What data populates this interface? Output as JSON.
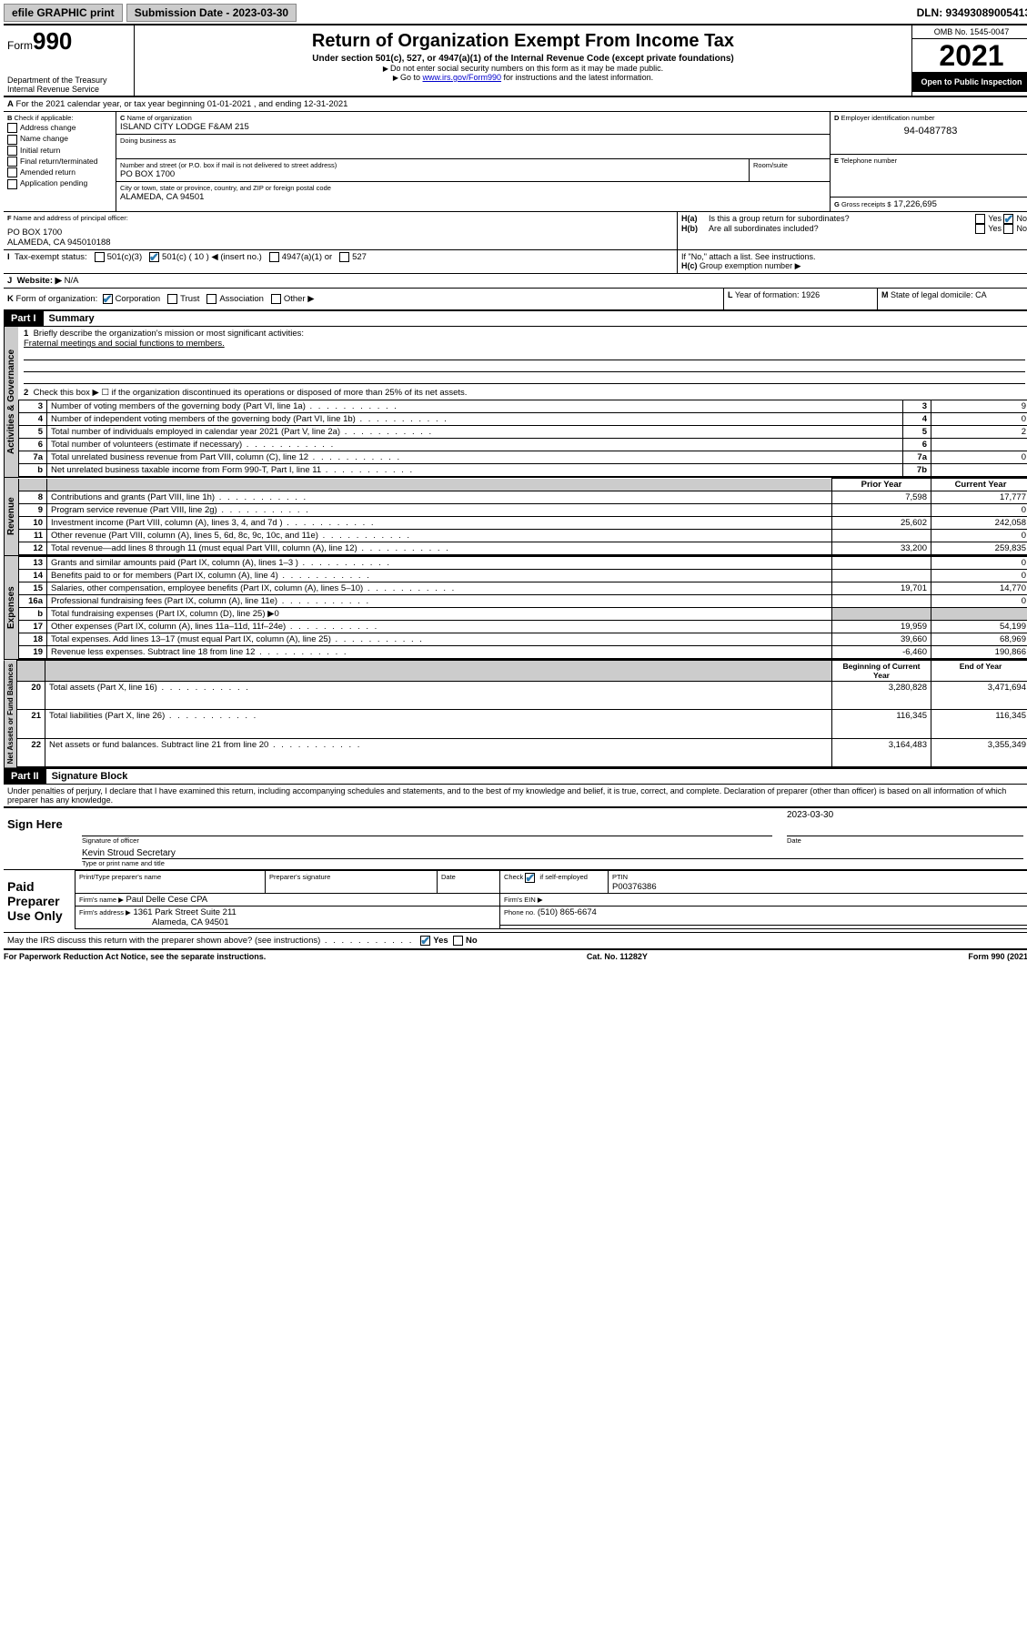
{
  "topbar": {
    "efile": "efile GRAPHIC print",
    "sub_label": "Submission Date - 2023-03-30",
    "dln": "DLN: 93493089005413"
  },
  "header": {
    "form_label": "Form",
    "form_no": "990",
    "dept": "Department of the Treasury Internal Revenue Service",
    "title": "Return of Organization Exempt From Income Tax",
    "sub": "Under section 501(c), 527, or 4947(a)(1) of the Internal Revenue Code (except private foundations)",
    "note1": "Do not enter social security numbers on this form as it may be made public.",
    "note2_a": "Go to ",
    "note2_link": "www.irs.gov/Form990",
    "note2_b": " for instructions and the latest information.",
    "omb": "OMB No. 1545-0047",
    "year": "2021",
    "inspect": "Open to Public Inspection"
  },
  "periodA": "For the 2021 calendar year, or tax year beginning 01-01-2021   , and ending 12-31-2021",
  "B": {
    "title": "Check if applicable:",
    "items": [
      "Address change",
      "Name change",
      "Initial return",
      "Final return/terminated",
      "Amended return",
      "Application pending"
    ]
  },
  "C": {
    "lbl_name": "Name of organization",
    "name": "ISLAND CITY LODGE F&AM 215",
    "lbl_dba": "Doing business as",
    "lbl_addr": "Number and street (or P.O. box if mail is not delivered to street address)",
    "lbl_room": "Room/suite",
    "addr": "PO BOX 1700",
    "lbl_city": "City or town, state or province, country, and ZIP or foreign postal code",
    "city": "ALAMEDA, CA  94501"
  },
  "D": {
    "lbl": "Employer identification number",
    "val": "94-0487783"
  },
  "E": {
    "lbl": "Telephone number"
  },
  "G": {
    "lbl": "Gross receipts $",
    "val": "17,226,695"
  },
  "F": {
    "lbl": "Name and address of principal officer:",
    "l1": "PO BOX 1700",
    "l2": "ALAMEDA, CA  945010188"
  },
  "H": {
    "a": "Is this a group return for subordinates?",
    "b": "Are all subordinates included?",
    "yes": "Yes",
    "no": "No",
    "note": "If \"No,\" attach a list. See instructions.",
    "c": "Group exemption number ▶"
  },
  "I": {
    "lbl": "Tax-exempt status:",
    "o1": "501(c)(3)",
    "o2": "501(c) ( 10 ) ◀ (insert no.)",
    "o3": "4947(a)(1) or",
    "o4": "527"
  },
  "J": {
    "lbl": "Website: ▶",
    "val": "N/A"
  },
  "K": {
    "lbl": "Form of organization:",
    "o1": "Corporation",
    "o2": "Trust",
    "o3": "Association",
    "o4": "Other ▶"
  },
  "L": {
    "lbl": "Year of formation:",
    "val": "1926"
  },
  "M": {
    "lbl": "State of legal domicile:",
    "val": "CA"
  },
  "part1": {
    "hdr": "Part I",
    "title": "Summary",
    "q1": "Briefly describe the organization's mission or most significant activities:",
    "q1v": "Fraternal meetings and social functions to members.",
    "q2": "Check this box ▶ ☐  if the organization discontinued its operations or disposed of more than 25% of its net assets.",
    "rows_gov": [
      {
        "n": "3",
        "t": "Number of voting members of the governing body (Part VI, line 1a)",
        "r": "3",
        "v": "9"
      },
      {
        "n": "4",
        "t": "Number of independent voting members of the governing body (Part VI, line 1b)",
        "r": "4",
        "v": "0"
      },
      {
        "n": "5",
        "t": "Total number of individuals employed in calendar year 2021 (Part V, line 2a)",
        "r": "5",
        "v": "2"
      },
      {
        "n": "6",
        "t": "Total number of volunteers (estimate if necessary)",
        "r": "6",
        "v": ""
      },
      {
        "n": "7a",
        "t": "Total unrelated business revenue from Part VIII, column (C), line 12",
        "r": "7a",
        "v": "0"
      },
      {
        "n": "b",
        "t": "Net unrelated business taxable income from Form 990-T, Part I, line 11",
        "r": "7b",
        "v": ""
      }
    ],
    "col_prior": "Prior Year",
    "col_curr": "Current Year",
    "rows_rev": [
      {
        "n": "8",
        "t": "Contributions and grants (Part VIII, line 1h)",
        "p": "7,598",
        "c": "17,777"
      },
      {
        "n": "9",
        "t": "Program service revenue (Part VIII, line 2g)",
        "p": "",
        "c": "0"
      },
      {
        "n": "10",
        "t": "Investment income (Part VIII, column (A), lines 3, 4, and 7d )",
        "p": "25,602",
        "c": "242,058"
      },
      {
        "n": "11",
        "t": "Other revenue (Part VIII, column (A), lines 5, 6d, 8c, 9c, 10c, and 11e)",
        "p": "",
        "c": "0"
      },
      {
        "n": "12",
        "t": "Total revenue—add lines 8 through 11 (must equal Part VIII, column (A), line 12)",
        "p": "33,200",
        "c": "259,835"
      }
    ],
    "rows_exp": [
      {
        "n": "13",
        "t": "Grants and similar amounts paid (Part IX, column (A), lines 1–3 )",
        "p": "",
        "c": "0"
      },
      {
        "n": "14",
        "t": "Benefits paid to or for members (Part IX, column (A), line 4)",
        "p": "",
        "c": "0"
      },
      {
        "n": "15",
        "t": "Salaries, other compensation, employee benefits (Part IX, column (A), lines 5–10)",
        "p": "19,701",
        "c": "14,770"
      },
      {
        "n": "16a",
        "t": "Professional fundraising fees (Part IX, column (A), line 11e)",
        "p": "",
        "c": "0"
      }
    ],
    "row16b": {
      "n": "b",
      "t": "Total fundraising expenses (Part IX, column (D), line 25) ▶0"
    },
    "rows_exp2": [
      {
        "n": "17",
        "t": "Other expenses (Part IX, column (A), lines 11a–11d, 11f–24e)",
        "p": "19,959",
        "c": "54,199"
      },
      {
        "n": "18",
        "t": "Total expenses. Add lines 13–17 (must equal Part IX, column (A), line 25)",
        "p": "39,660",
        "c": "68,969"
      },
      {
        "n": "19",
        "t": "Revenue less expenses. Subtract line 18 from line 12",
        "p": "-6,460",
        "c": "190,866"
      }
    ],
    "col_beg": "Beginning of Current Year",
    "col_end": "End of Year",
    "rows_net": [
      {
        "n": "20",
        "t": "Total assets (Part X, line 16)",
        "p": "3,280,828",
        "c": "3,471,694"
      },
      {
        "n": "21",
        "t": "Total liabilities (Part X, line 26)",
        "p": "116,345",
        "c": "116,345"
      },
      {
        "n": "22",
        "t": "Net assets or fund balances. Subtract line 21 from line 20",
        "p": "3,164,483",
        "c": "3,355,349"
      }
    ],
    "tabs": {
      "gov": "Activities & Governance",
      "rev": "Revenue",
      "exp": "Expenses",
      "net": "Net Assets or Fund Balances"
    }
  },
  "part2": {
    "hdr": "Part II",
    "title": "Signature Block",
    "decl": "Under penalties of perjury, I declare that I have examined this return, including accompanying schedules and statements, and to the best of my knowledge and belief, it is true, correct, and complete. Declaration of preparer (other than officer) is based on all information of which preparer has any knowledge.",
    "sign_here": "Sign Here",
    "sig_off": "Signature of officer",
    "date_lbl": "Date",
    "date": "2023-03-30",
    "name": "Kevin Stroud Secretary",
    "name_lbl": "Type or print name and title",
    "paid": "Paid Preparer Use Only",
    "pt_name": "Print/Type preparer's name",
    "pt_sig": "Preparer's signature",
    "pt_date": "Date",
    "pt_check": "Check ☑ if self-employed",
    "ptin_lbl": "PTIN",
    "ptin": "P00376386",
    "firm_lbl": "Firm's name   ▶",
    "firm": "Paul Delle Cese CPA",
    "ein_lbl": "Firm's EIN ▶",
    "faddr_lbl": "Firm's address ▶",
    "faddr1": "1361 Park Street Suite 211",
    "faddr2": "Alameda, CA  94501",
    "phone_lbl": "Phone no.",
    "phone": "(510) 865-6674",
    "discuss": "May the IRS discuss this return with the preparer shown above? (see instructions)"
  },
  "footer": {
    "l": "For Paperwork Reduction Act Notice, see the separate instructions.",
    "m": "Cat. No. 11282Y",
    "r": "Form 990 (2021)"
  }
}
